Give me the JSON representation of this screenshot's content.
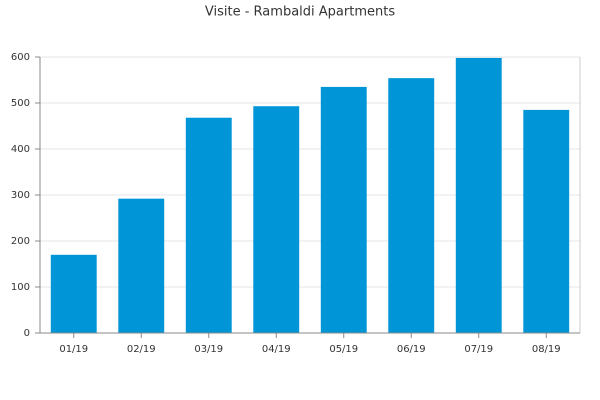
{
  "chart_data": {
    "type": "bar",
    "title": "Visite - Rambaldi Apartments",
    "categories": [
      "01/19",
      "02/19",
      "03/19",
      "04/19",
      "05/19",
      "06/19",
      "07/19",
      "08/19"
    ],
    "values": [
      170,
      292,
      468,
      493,
      535,
      554,
      598,
      485
    ],
    "color": "#0095d6",
    "ylim": [
      0,
      600
    ],
    "yticks": [
      0,
      100,
      200,
      300,
      400,
      500,
      600
    ],
    "grid": true
  }
}
